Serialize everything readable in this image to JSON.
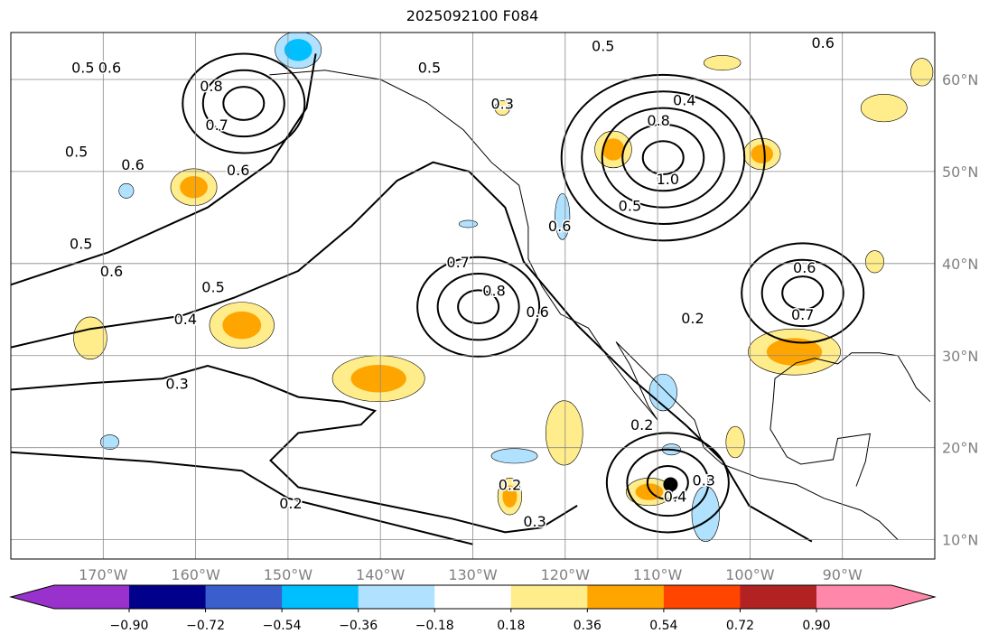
{
  "title": "2025092100 F084",
  "chart_data": {
    "type": "contour_map",
    "title": "2025092100 F084",
    "lon_range": [
      -180,
      -80
    ],
    "lat_range": [
      7.9,
      65.1
    ],
    "grid": true,
    "x_ticks": [
      {
        "value": -170,
        "label": "170°W"
      },
      {
        "value": -160,
        "label": "160°W"
      },
      {
        "value": -150,
        "label": "150°W"
      },
      {
        "value": -140,
        "label": "140°W"
      },
      {
        "value": -130,
        "label": "130°W"
      },
      {
        "value": -120,
        "label": "120°W"
      },
      {
        "value": -110,
        "label": "110°W"
      },
      {
        "value": -100,
        "label": "100°W"
      },
      {
        "value": -90,
        "label": "90°W"
      }
    ],
    "y_ticks": [
      {
        "value": 60,
        "label": "60°N"
      },
      {
        "value": 50,
        "label": "50°N"
      },
      {
        "value": 40,
        "label": "40°N"
      },
      {
        "value": 30,
        "label": "30°N"
      },
      {
        "value": 20,
        "label": "20°N"
      },
      {
        "value": 10,
        "label": "10°N"
      }
    ],
    "colorbar": {
      "boundaries": [
        -0.9,
        -0.72,
        -0.54,
        -0.36,
        -0.18,
        0.18,
        0.36,
        0.54,
        0.72,
        0.9
      ],
      "tick_labels": [
        "−0.90",
        "−0.72",
        "−0.54",
        "−0.36",
        "−0.18",
        "0.18",
        "0.36",
        "0.54",
        "0.72",
        "0.90"
      ],
      "colors": [
        "#9932cc",
        "#00008b",
        "#3a5fcd",
        "#00bfff",
        "#b0e2ff",
        "#ffffff",
        "#ffec8b",
        "#ffa500",
        "#ff4500",
        "#b22222",
        "#ff88aa"
      ],
      "extend": "both"
    },
    "shaded_regions": [
      {
        "lon": -160.2,
        "lat": 48.3,
        "rlon": 2.5,
        "rlat": 2.0,
        "level": 0.4
      },
      {
        "lon": -171.4,
        "lat": 31.9,
        "rlon": 1.8,
        "rlat": 2.3,
        "level": 0.3
      },
      {
        "lon": -155.0,
        "lat": 33.3,
        "rlon": 3.5,
        "rlat": 2.5,
        "level": 0.4
      },
      {
        "lon": -140.2,
        "lat": 27.5,
        "rlon": 5.0,
        "rlat": 2.5,
        "level": 0.4
      },
      {
        "lon": -120.1,
        "lat": 21.6,
        "rlon": 2.0,
        "rlat": 3.5,
        "level": 0.25
      },
      {
        "lon": -126.0,
        "lat": 14.7,
        "rlon": 1.3,
        "rlat": 2.0,
        "level": 0.4
      },
      {
        "lon": -110.9,
        "lat": 15.2,
        "rlon": 2.5,
        "rlat": 1.5,
        "level": 0.4
      },
      {
        "lon": -101.6,
        "lat": 20.6,
        "rlon": 1.0,
        "rlat": 1.7,
        "level": 0.25
      },
      {
        "lon": -114.8,
        "lat": 52.4,
        "rlon": 2.0,
        "rlat": 2.0,
        "level": 0.4
      },
      {
        "lon": -98.7,
        "lat": 51.9,
        "rlon": 2.0,
        "rlat": 1.7,
        "level": 0.4
      },
      {
        "lon": -95.2,
        "lat": 30.4,
        "rlon": 5.0,
        "rlat": 2.5,
        "level": 0.45
      },
      {
        "lon": -103.0,
        "lat": 61.8,
        "rlon": 2.0,
        "rlat": 0.8,
        "level": 0.25
      },
      {
        "lon": -85.5,
        "lat": 56.9,
        "rlon": 2.5,
        "rlat": 1.5,
        "level": 0.25
      },
      {
        "lon": -81.4,
        "lat": 60.8,
        "rlon": 1.2,
        "rlat": 1.5,
        "level": 0.25
      },
      {
        "lon": -126.8,
        "lat": 56.9,
        "rlon": 0.8,
        "rlat": 0.8,
        "level": 0.25
      },
      {
        "lon": -86.5,
        "lat": 40.2,
        "rlon": 1.0,
        "rlat": 1.2,
        "level": 0.25
      },
      {
        "lon": -148.9,
        "lat": 63.2,
        "rlon": 2.5,
        "rlat": 2.0,
        "level": -0.4
      },
      {
        "lon": -167.5,
        "lat": 47.9,
        "rlon": 0.8,
        "rlat": 0.8,
        "level": -0.25
      },
      {
        "lon": -120.3,
        "lat": 45.1,
        "rlon": 0.8,
        "rlat": 2.5,
        "level": -0.25
      },
      {
        "lon": -109.4,
        "lat": 26.0,
        "rlon": 1.5,
        "rlat": 2.0,
        "level": -0.3
      },
      {
        "lon": -125.5,
        "lat": 19.1,
        "rlon": 2.5,
        "rlat": 0.8,
        "level": -0.25
      },
      {
        "lon": -104.8,
        "lat": 12.8,
        "rlon": 1.5,
        "rlat": 3.0,
        "level": -0.25
      },
      {
        "lon": -169.3,
        "lat": 20.6,
        "rlon": 1.0,
        "rlat": 0.8,
        "level": -0.25
      },
      {
        "lon": -130.5,
        "lat": 44.3,
        "rlon": 1.0,
        "rlat": 0.4,
        "level": -0.25
      },
      {
        "lon": -108.5,
        "lat": 19.8,
        "rlon": 1.0,
        "rlat": 0.6,
        "level": -0.25
      }
    ],
    "contour_lines": [
      {
        "level": 0.3,
        "points": [
          [
            -180,
            26.3
          ],
          [
            -171.4,
            27.0
          ],
          [
            -163.6,
            27.5
          ],
          [
            -158.7,
            28.9
          ],
          [
            -153.8,
            27.5
          ],
          [
            -148.9,
            25.5
          ],
          [
            -144.1,
            25.0
          ],
          [
            -140.6,
            24.0
          ],
          [
            -142.1,
            22.5
          ],
          [
            -148.9,
            21.6
          ],
          [
            -151.9,
            18.6
          ],
          [
            -148.9,
            15.7
          ],
          [
            -139.2,
            13.7
          ],
          [
            -132.3,
            12.3
          ],
          [
            -126.5,
            10.8
          ],
          [
            -122.6,
            11.3
          ],
          [
            -118.7,
            13.7
          ]
        ]
      },
      {
        "level": 0.4,
        "points": [
          [
            -180,
            30.9
          ],
          [
            -171.4,
            32.9
          ],
          [
            -161.6,
            34.3
          ],
          [
            -155.8,
            36.3
          ],
          [
            -148.9,
            39.2
          ],
          [
            -143.1,
            44.1
          ],
          [
            -138.2,
            49.0
          ],
          [
            -134.3,
            51.0
          ],
          [
            -130.4,
            50.0
          ],
          [
            -126.5,
            46.1
          ],
          [
            -124.5,
            40.2
          ],
          [
            -118.7,
            33.3
          ],
          [
            -112.8,
            27.5
          ],
          [
            -107.0,
            22.5
          ],
          [
            -103.0,
            18.6
          ],
          [
            -100.1,
            13.7
          ],
          [
            -93.3,
            9.8
          ]
        ]
      },
      {
        "level": 0.5,
        "points": [
          [
            -180,
            37.7
          ],
          [
            -169.5,
            41.2
          ],
          [
            -158.7,
            46.1
          ],
          [
            -151.9,
            51.0
          ],
          [
            -148.0,
            56.9
          ],
          [
            -147.0,
            62.8
          ]
        ]
      },
      {
        "level": 0.2,
        "points": [
          [
            -180,
            19.5
          ],
          [
            -165,
            18.5
          ],
          [
            -155,
            17.5
          ],
          [
            -150,
            14.5
          ],
          [
            -140,
            12.0
          ],
          [
            -130,
            9.5
          ]
        ]
      }
    ],
    "closed_centers": [
      {
        "lon": -109.4,
        "lat": 51.5,
        "levels": [
          0.6,
          0.7,
          0.8,
          0.9,
          1.0
        ],
        "rings": 5
      },
      {
        "lon": -129.4,
        "lat": 35.3,
        "levels": [
          0.6,
          0.7,
          0.8
        ],
        "rings": 3
      },
      {
        "lon": -94.3,
        "lat": 36.8,
        "levels": [
          0.5,
          0.6,
          0.7
        ],
        "rings": 3
      },
      {
        "lon": -108.9,
        "lat": 16.2,
        "levels": [
          0.2,
          0.3,
          0.4
        ],
        "rings": 3
      },
      {
        "lon": -154.8,
        "lat": 57.4,
        "levels": [
          0.6,
          0.7,
          0.8
        ],
        "rings": 3
      }
    ],
    "contour_labels": [
      {
        "text": "0.5",
        "lon": -172.2,
        "lat": 61.3
      },
      {
        "text": "0.6",
        "lon": -169.3,
        "lat": 61.3
      },
      {
        "text": "0.8",
        "lon": -158.3,
        "lat": 59.3
      },
      {
        "text": "0.7",
        "lon": -157.7,
        "lat": 55.1
      },
      {
        "text": "0.6",
        "lon": -166.8,
        "lat": 50.8
      },
      {
        "text": "0.5",
        "lon": -172.9,
        "lat": 52.2
      },
      {
        "text": "0.6",
        "lon": -155.4,
        "lat": 50.2
      },
      {
        "text": "0.5",
        "lon": -172.4,
        "lat": 42.2
      },
      {
        "text": "0.6",
        "lon": -169.1,
        "lat": 39.2
      },
      {
        "text": "0.5",
        "lon": -158.1,
        "lat": 37.5
      },
      {
        "text": "0.4",
        "lon": -161.1,
        "lat": 34.0
      },
      {
        "text": "0.3",
        "lon": -162.0,
        "lat": 27.0
      },
      {
        "text": "0.2",
        "lon": -149.7,
        "lat": 14.0
      },
      {
        "text": "0.5",
        "lon": -134.7,
        "lat": 61.3
      },
      {
        "text": "0.3",
        "lon": -126.8,
        "lat": 57.4
      },
      {
        "text": "0.5",
        "lon": -115.9,
        "lat": 63.7
      },
      {
        "text": "0.6",
        "lon": -92.1,
        "lat": 64.0
      },
      {
        "text": "0.4",
        "lon": -107.1,
        "lat": 57.8
      },
      {
        "text": "0.8",
        "lon": -109.9,
        "lat": 55.6
      },
      {
        "text": "1.0",
        "lon": -108.9,
        "lat": 49.2
      },
      {
        "text": "0.5",
        "lon": -113.0,
        "lat": 46.3
      },
      {
        "text": "0.6",
        "lon": -120.6,
        "lat": 44.1
      },
      {
        "text": "0.7",
        "lon": -131.6,
        "lat": 40.2
      },
      {
        "text": "0.8",
        "lon": -127.7,
        "lat": 37.1
      },
      {
        "text": "0.6",
        "lon": -123.0,
        "lat": 34.8
      },
      {
        "text": "0.2",
        "lon": -106.2,
        "lat": 34.1
      },
      {
        "text": "0.6",
        "lon": -94.1,
        "lat": 39.6
      },
      {
        "text": "0.7",
        "lon": -94.3,
        "lat": 34.5
      },
      {
        "text": "0.2",
        "lon": -111.7,
        "lat": 22.5
      },
      {
        "text": "0.2",
        "lon": -126.0,
        "lat": 16.0
      },
      {
        "text": "0.3",
        "lon": -123.3,
        "lat": 12.0
      },
      {
        "text": "0.4",
        "lon": -108.1,
        "lat": 14.7
      },
      {
        "text": "0.3",
        "lon": -105.0,
        "lat": 16.5
      }
    ],
    "storm_marker": {
      "lon": -108.6,
      "lat": 16.0
    },
    "coastline": [
      [
        -152,
        60.5
      ],
      [
        -146,
        61
      ],
      [
        -140,
        60
      ],
      [
        -135,
        57.5
      ],
      [
        -131,
        54.5
      ],
      [
        -128,
        51
      ],
      [
        -125,
        48.5
      ],
      [
        -124,
        44
      ],
      [
        -124,
        40.5
      ],
      [
        -122.5,
        37.5
      ],
      [
        -120.5,
        34.5
      ],
      [
        -117.5,
        33
      ],
      [
        -115.5,
        30
      ],
      [
        -112.5,
        26
      ],
      [
        -110,
        23
      ],
      [
        -111,
        24.5
      ],
      [
        -113,
        29
      ],
      [
        -114.5,
        31.5
      ],
      [
        -112,
        29
      ],
      [
        -110,
        27
      ],
      [
        -106,
        23
      ],
      [
        -105,
        20
      ],
      [
        -103,
        18.2
      ],
      [
        -99,
        16.7
      ],
      [
        -95,
        16
      ],
      [
        -92,
        14.5
      ],
      [
        -88,
        13.2
      ],
      [
        -86,
        12
      ],
      [
        -84,
        10
      ]
    ],
    "gulf_coast": [
      [
        -80.5,
        25
      ],
      [
        -82,
        26.5
      ],
      [
        -82.8,
        28
      ],
      [
        -84,
        30
      ],
      [
        -86,
        30.3
      ],
      [
        -89,
        30.3
      ],
      [
        -90.5,
        29.1
      ],
      [
        -93,
        29.7
      ],
      [
        -95,
        29.2
      ],
      [
        -97.3,
        27.5
      ],
      [
        -97.5,
        25
      ],
      [
        -97.8,
        22
      ],
      [
        -96,
        19
      ],
      [
        -94.5,
        18.2
      ],
      [
        -91,
        18.7
      ],
      [
        -90.5,
        21
      ],
      [
        -87,
        21.5
      ],
      [
        -87.5,
        18.5
      ],
      [
        -88.5,
        15.8
      ]
    ]
  }
}
